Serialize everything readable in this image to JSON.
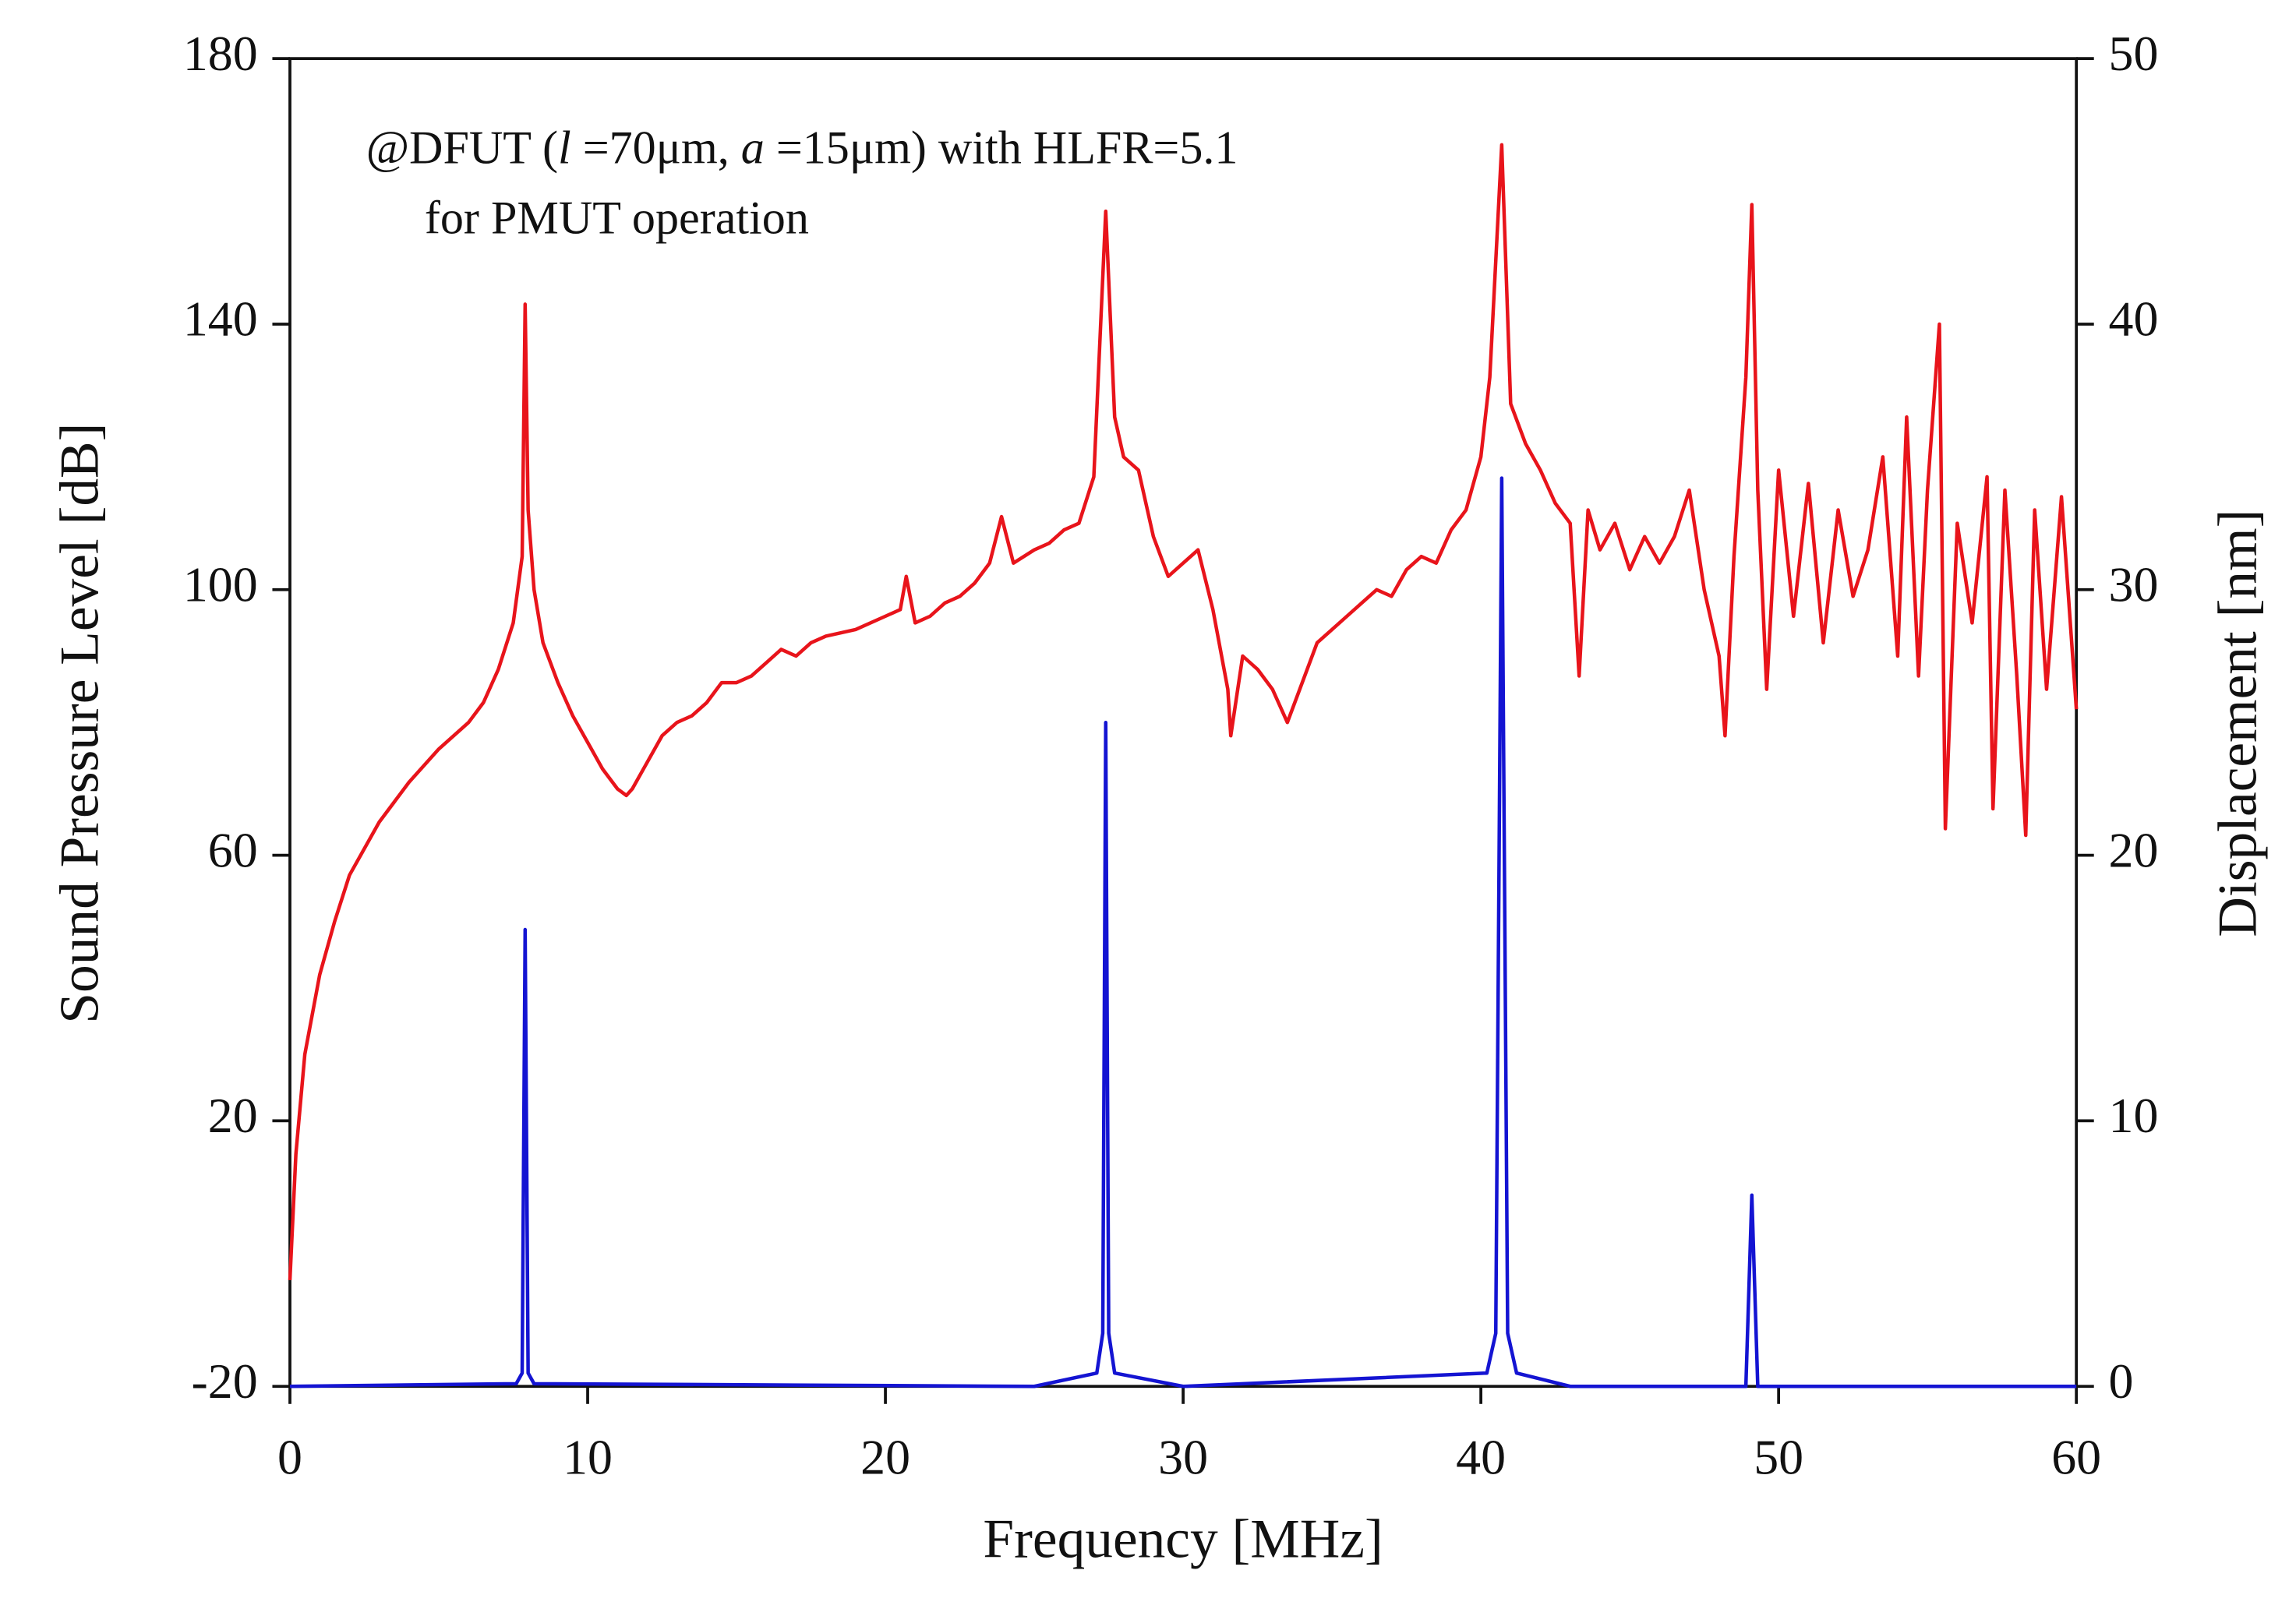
{
  "chart_data": {
    "type": "line",
    "xlabel": "Frequency [MHz]",
    "ylabel": "Sound Pressure Level [dB]",
    "y2label": "Displacement [nm]",
    "annotation": [
      [
        "@DFUT (",
        "l",
        " =70μm, ",
        "a",
        " =15μm) with HLFR=5.1"
      ],
      [
        "for PMUT operation"
      ]
    ],
    "xlim": [
      0,
      60
    ],
    "xticks": [
      0,
      10,
      20,
      30,
      40,
      50,
      60
    ],
    "ylim": [
      -20,
      180
    ],
    "yticks": [
      -20,
      20,
      60,
      100,
      140,
      180
    ],
    "y2lim": [
      0,
      50
    ],
    "y2ticks": [
      0,
      10,
      20,
      30,
      40,
      50
    ],
    "series": [
      {
        "color": "#e8141b",
        "axis": "y",
        "x": [
          0,
          0.2,
          0.5,
          1,
          1.5,
          2,
          3,
          4,
          5,
          6,
          6.5,
          7,
          7.5,
          7.8,
          7.9,
          8.0,
          8.2,
          8.5,
          9,
          9.5,
          10,
          10.5,
          11,
          11.3,
          11.5,
          12,
          12.5,
          13,
          13.5,
          14,
          14.5,
          15,
          15.5,
          16,
          16.5,
          17,
          17.5,
          18,
          19,
          20,
          20.5,
          20.7,
          21,
          21.5,
          22,
          22.5,
          23,
          23.5,
          23.9,
          24.3,
          25,
          25.5,
          26,
          26.5,
          27,
          27.4,
          27.7,
          28,
          28.5,
          29,
          29.5,
          30,
          30.5,
          31,
          31.5,
          31.6,
          32,
          32.5,
          33,
          33.5,
          34,
          34.5,
          35,
          35.5,
          36,
          36.5,
          37,
          37.5,
          38,
          38.5,
          39,
          39.5,
          40,
          40.3,
          40.7,
          41,
          41.5,
          42,
          42.5,
          43,
          43.3,
          43.6,
          44,
          44.5,
          45,
          45.5,
          46,
          46.5,
          47,
          47.5,
          48,
          48.2,
          48.5,
          48.9,
          49.1,
          49.3,
          49.6,
          50,
          50.5,
          51,
          51.5,
          52,
          52.5,
          53,
          53.5,
          54,
          54.3,
          54.7,
          55,
          55.4,
          55.6,
          56,
          56.5,
          57,
          57.2,
          57.6,
          58,
          58.3,
          58.6,
          59,
          59.5,
          60
        ],
        "values": [
          -4,
          15,
          30,
          42,
          50,
          57,
          65,
          71,
          76,
          80,
          83,
          88,
          95,
          105,
          143,
          112,
          100,
          92,
          86,
          81,
          77,
          73,
          70,
          69,
          70,
          74,
          78,
          80,
          81,
          83,
          86,
          86,
          87,
          89,
          91,
          90,
          92,
          93,
          94,
          96,
          97,
          102,
          95,
          96,
          98,
          99,
          101,
          104,
          111,
          104,
          106,
          107,
          109,
          110,
          117,
          157,
          126,
          120,
          118,
          108,
          102,
          104,
          106,
          97,
          85,
          78,
          90,
          88,
          85,
          80,
          86,
          92,
          94,
          96,
          98,
          100,
          99,
          103,
          105,
          104,
          109,
          112,
          120,
          132,
          167,
          128,
          122,
          118,
          113,
          110,
          87,
          112,
          106,
          110,
          103,
          108,
          104,
          108,
          115,
          100,
          90,
          78,
          105,
          132,
          158,
          115,
          85,
          118,
          96,
          116,
          92,
          112,
          99,
          106,
          120,
          90,
          126,
          87,
          115,
          140,
          64,
          110,
          95,
          117,
          67,
          115,
          87,
          63,
          112,
          85,
          114,
          82
        ]
      },
      {
        "color": "#1414d2",
        "axis": "y2",
        "x": [
          0,
          7.6,
          7.8,
          7.9,
          8.0,
          8.2,
          25,
          27.1,
          27.3,
          27.4,
          27.5,
          27.7,
          30,
          40.2,
          40.5,
          40.7,
          40.9,
          41.2,
          43,
          48.9,
          49.1,
          49.3,
          60
        ],
        "values": [
          0,
          0.1,
          0.5,
          17.2,
          0.5,
          0.1,
          0,
          0.5,
          2,
          25,
          2,
          0.5,
          0,
          0.5,
          2,
          34.2,
          2,
          0.5,
          0,
          0,
          7.2,
          0,
          0
        ]
      }
    ]
  }
}
